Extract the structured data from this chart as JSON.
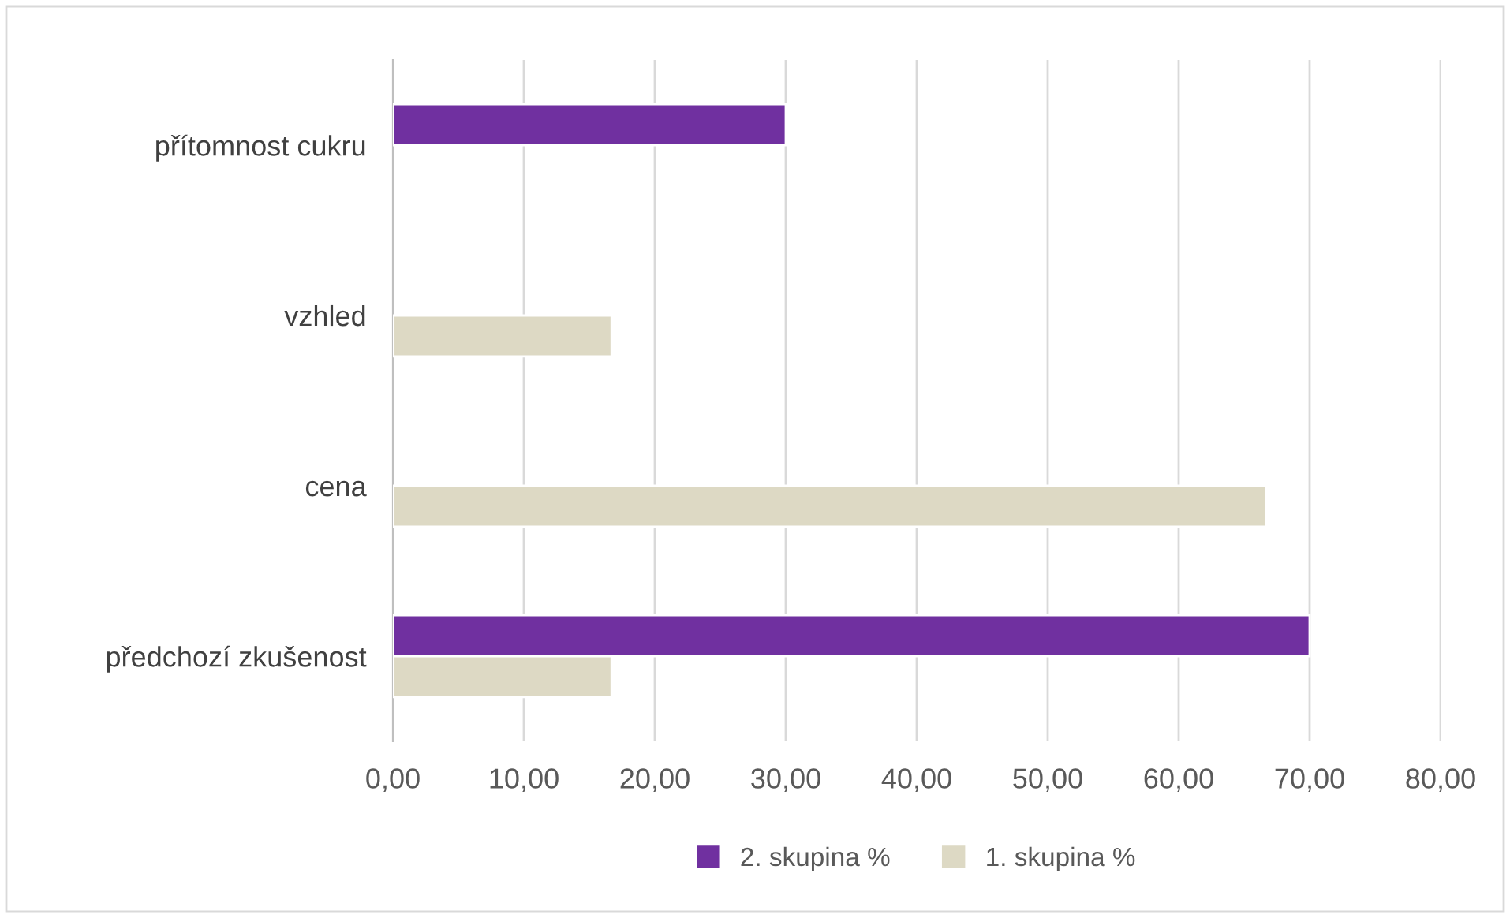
{
  "chart_data": {
    "type": "bar",
    "orientation": "horizontal",
    "categories": [
      "přítomnost cukru",
      "vzhled",
      "cena",
      "předchozí zkušenost"
    ],
    "series": [
      {
        "name": "2. skupina %",
        "color": "#7030a0",
        "values": [
          30.0,
          null,
          null,
          70.0
        ]
      },
      {
        "name": "1. skupina %",
        "color": "#ddd9c4",
        "values": [
          null,
          16.7,
          66.7,
          16.7
        ]
      }
    ],
    "xlim": [
      0,
      80
    ],
    "xticks": [
      {
        "value": 0,
        "label": "0,00"
      },
      {
        "value": 10,
        "label": "10,00"
      },
      {
        "value": 20,
        "label": "20,00"
      },
      {
        "value": 30,
        "label": "30,00"
      },
      {
        "value": 40,
        "label": "40,00"
      },
      {
        "value": 50,
        "label": "50,00"
      },
      {
        "value": 60,
        "label": "60,00"
      },
      {
        "value": 70,
        "label": "70,00"
      },
      {
        "value": 80,
        "label": "80,00"
      }
    ],
    "grid": "x",
    "legend": "bottom"
  }
}
